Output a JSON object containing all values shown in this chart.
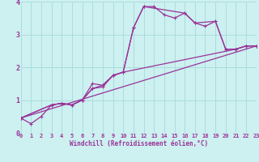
{
  "xlabel": "Windchill (Refroidissement éolien,°C)",
  "xlim": [
    0,
    23
  ],
  "ylim": [
    0,
    4
  ],
  "xticks": [
    0,
    1,
    2,
    3,
    4,
    5,
    6,
    7,
    8,
    9,
    10,
    11,
    12,
    13,
    14,
    15,
    16,
    17,
    18,
    19,
    20,
    21,
    22,
    23
  ],
  "yticks": [
    0,
    1,
    2,
    3,
    4
  ],
  "bg_color": "#cdf0f0",
  "line_color": "#993399",
  "grid_color": "#aadddd",
  "line1_x": [
    0,
    1,
    2,
    3,
    4,
    5,
    6,
    7,
    8,
    9,
    10,
    11,
    12,
    13,
    14,
    15,
    16,
    17,
    18,
    19,
    20,
    21,
    22,
    23
  ],
  "line1_y": [
    0.45,
    0.28,
    0.5,
    0.85,
    0.9,
    0.85,
    1.0,
    1.35,
    1.4,
    1.75,
    1.85,
    3.2,
    3.85,
    3.85,
    3.6,
    3.5,
    3.65,
    3.35,
    3.25,
    3.4,
    2.55,
    2.55,
    2.65,
    2.65
  ],
  "line2_x": [
    0,
    3,
    4,
    5,
    6,
    7,
    8,
    9,
    10,
    11,
    12,
    16,
    17,
    19,
    20,
    21,
    22,
    23
  ],
  "line2_y": [
    0.45,
    0.85,
    0.9,
    0.85,
    1.0,
    1.5,
    1.45,
    1.75,
    1.85,
    3.2,
    3.85,
    3.65,
    3.35,
    3.4,
    2.55,
    2.55,
    2.65,
    2.65
  ],
  "line3_x": [
    0,
    3,
    4,
    5,
    6,
    7,
    8,
    9,
    10,
    21,
    22,
    23
  ],
  "line3_y": [
    0.45,
    0.85,
    0.9,
    0.85,
    1.0,
    1.35,
    1.45,
    1.75,
    1.85,
    2.55,
    2.65,
    2.65
  ],
  "line4_x": [
    0,
    23
  ],
  "line4_y": [
    0.45,
    2.65
  ]
}
